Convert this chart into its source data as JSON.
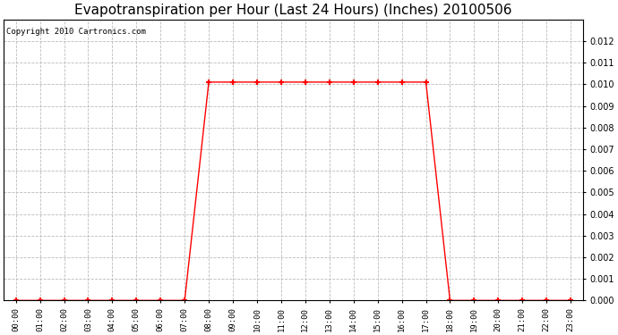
{
  "title": "Evapotranspiration per Hour (Last 24 Hours) (Inches) 20100506",
  "copyright_text": "Copyright 2010 Cartronics.com",
  "hours": [
    "00:00",
    "01:00",
    "02:00",
    "03:00",
    "04:00",
    "05:00",
    "06:00",
    "07:00",
    "08:00",
    "09:00",
    "10:00",
    "11:00",
    "12:00",
    "13:00",
    "14:00",
    "15:00",
    "16:00",
    "17:00",
    "18:00",
    "19:00",
    "20:00",
    "21:00",
    "22:00",
    "23:00"
  ],
  "values": [
    0.0,
    0.0,
    0.0,
    0.0,
    0.0,
    0.0,
    0.0,
    0.0,
    0.0101,
    0.0101,
    0.0101,
    0.0101,
    0.0101,
    0.0101,
    0.0101,
    0.0101,
    0.0101,
    0.0101,
    0.0,
    0.0,
    0.0,
    0.0,
    0.0,
    0.0
  ],
  "line_color": "#ff0000",
  "marker": "+",
  "marker_size": 5,
  "marker_linewidth": 1.5,
  "ylim": [
    0,
    0.013
  ],
  "yticks": [
    0.0,
    0.001,
    0.002,
    0.003,
    0.004,
    0.005,
    0.006,
    0.007,
    0.008,
    0.009,
    0.01,
    0.011,
    0.012
  ],
  "background_color": "#ffffff",
  "plot_bg_color": "#ffffff",
  "grid_color": "#bbbbbb",
  "title_fontsize": 11,
  "copyright_fontsize": 6.5
}
